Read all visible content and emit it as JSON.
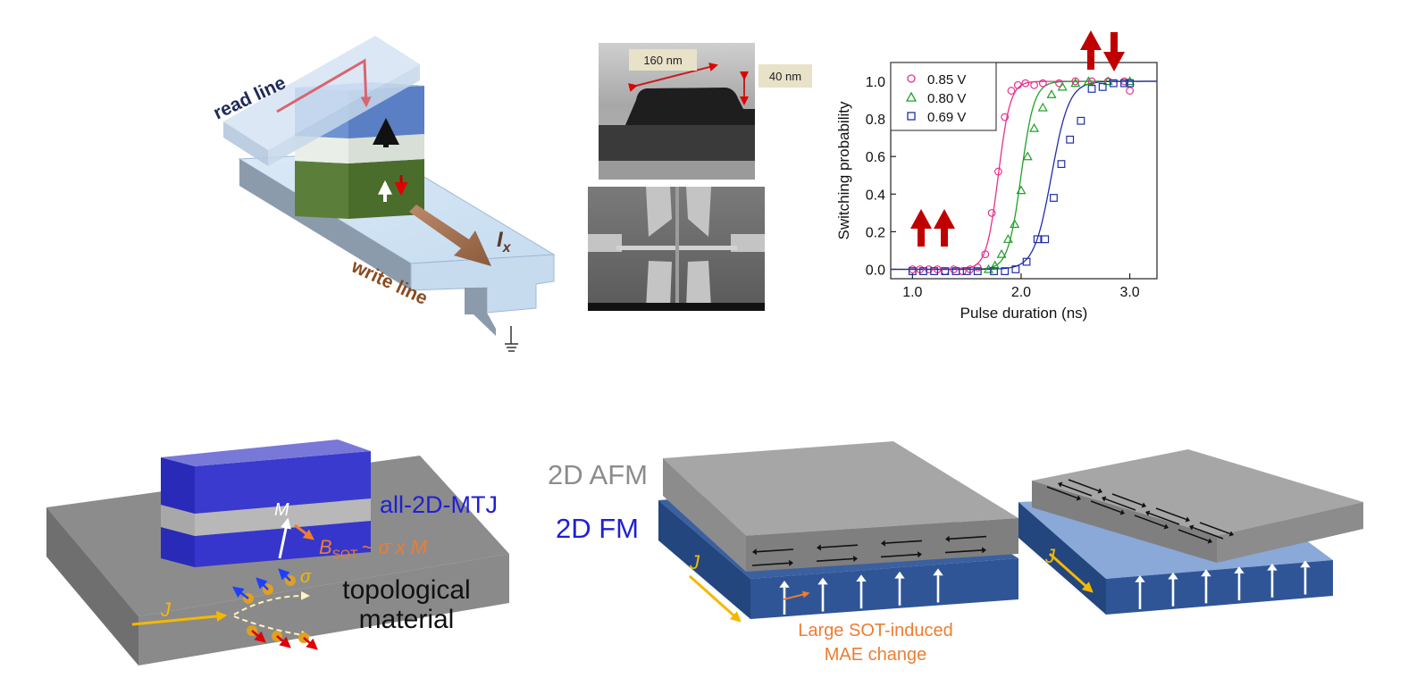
{
  "mtj_device": {
    "read_line_label": "read line",
    "write_line_label": "write line",
    "current_label": "I",
    "current_subscript": "x"
  },
  "tem_image": {
    "width_label": "160 nm",
    "height_label": "40 nm"
  },
  "switching_chart": {
    "xlabel": "Pulse duration (ns)",
    "ylabel": "Switching probability"
  },
  "chart_data": {
    "type": "scatter",
    "xlabel": "Pulse duration (ns)",
    "ylabel": "Switching probability",
    "xlim": [
      0.8,
      3.25
    ],
    "ylim": [
      -0.05,
      1.1
    ],
    "x_ticks": [
      "1.0",
      "2.0",
      "3.0"
    ],
    "y_ticks": [
      "0.0",
      "0.2",
      "0.4",
      "0.6",
      "0.8",
      "1.0"
    ],
    "legend_position": "top-left",
    "grid": false,
    "series": [
      {
        "name": "0.85 V",
        "color": "#e8308c",
        "marker": "circle",
        "fit_center": 1.79,
        "fit_width": 0.055,
        "points": [
          [
            1.0,
            0.0
          ],
          [
            1.07,
            0.0
          ],
          [
            1.15,
            0.0
          ],
          [
            1.23,
            0.0
          ],
          [
            1.3,
            -0.01
          ],
          [
            1.38,
            0.0
          ],
          [
            1.46,
            -0.01
          ],
          [
            1.53,
            0.0
          ],
          [
            1.6,
            0.01
          ],
          [
            1.67,
            0.08
          ],
          [
            1.73,
            0.3
          ],
          [
            1.79,
            0.52
          ],
          [
            1.85,
            0.81
          ],
          [
            1.91,
            0.95
          ],
          [
            1.97,
            0.98
          ],
          [
            2.04,
            0.99
          ],
          [
            2.12,
            0.98
          ],
          [
            2.2,
            0.99
          ],
          [
            2.35,
            0.99
          ],
          [
            2.5,
            1.0
          ],
          [
            2.65,
            1.0
          ],
          [
            2.8,
            1.0
          ],
          [
            2.95,
            1.0
          ],
          [
            3.0,
            0.95
          ]
        ]
      },
      {
        "name": "0.80 V",
        "color": "#22a02a",
        "marker": "triangle",
        "fit_center": 2.0,
        "fit_width": 0.06,
        "points": [
          [
            1.7,
            0.0
          ],
          [
            1.76,
            0.02
          ],
          [
            1.82,
            0.08
          ],
          [
            1.88,
            0.16
          ],
          [
            1.94,
            0.24
          ],
          [
            2.0,
            0.42
          ],
          [
            2.06,
            0.6
          ],
          [
            2.12,
            0.75
          ],
          [
            2.2,
            0.86
          ],
          [
            2.28,
            0.93
          ],
          [
            2.38,
            0.97
          ],
          [
            2.5,
            0.99
          ],
          [
            2.62,
            1.0
          ],
          [
            2.8,
            1.0
          ],
          [
            3.0,
            1.0
          ]
        ]
      },
      {
        "name": "0.69 V",
        "color": "#1f2fa8",
        "marker": "square",
        "fit_center": 2.28,
        "fit_width": 0.08,
        "points": [
          [
            1.0,
            -0.01
          ],
          [
            1.1,
            -0.01
          ],
          [
            1.2,
            -0.01
          ],
          [
            1.3,
            -0.01
          ],
          [
            1.4,
            -0.01
          ],
          [
            1.5,
            -0.01
          ],
          [
            1.6,
            -0.01
          ],
          [
            1.75,
            -0.01
          ],
          [
            1.85,
            -0.01
          ],
          [
            1.95,
            0.0
          ],
          [
            2.05,
            0.04
          ],
          [
            2.15,
            0.16
          ],
          [
            2.22,
            0.16
          ],
          [
            2.3,
            0.38
          ],
          [
            2.37,
            0.56
          ],
          [
            2.45,
            0.69
          ],
          [
            2.55,
            0.79
          ],
          [
            2.65,
            0.96
          ],
          [
            2.75,
            0.97
          ],
          [
            2.85,
            0.99
          ],
          [
            2.95,
            0.99
          ],
          [
            3.0,
            0.99
          ]
        ]
      }
    ]
  },
  "sot_device": {
    "magnetization_label": "M",
    "bsot_symbol": "B",
    "bsot_subscript": "SOT",
    "bsot_expression": "~ σ x M",
    "spin_label": "σ",
    "current_label": "J",
    "mtj_label": "all-2D-MTJ",
    "substrate_label_line1": "topological",
    "substrate_label_line2": "material"
  },
  "afm_fm_device": {
    "afm_label": "2D AFM",
    "fm_label": "2D FM",
    "current_label": "J",
    "mae_label_line1": "Large SOT-induced",
    "mae_label_line2": "MAE change"
  },
  "rotated_device": {
    "current_label": "J"
  },
  "colors": {
    "pulse_arrow_red": "#c00000",
    "orange_label": "#ed7d31",
    "mtj_blue": "#3333cc",
    "fm_blue": "#2f5597",
    "afm_gray": "#a6a6a6"
  }
}
